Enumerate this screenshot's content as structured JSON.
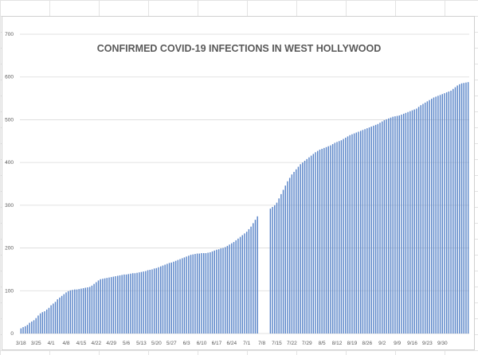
{
  "chart_data": {
    "type": "bar",
    "title": "CONFIRMED COVID-19 INFECTIONS IN WEST HOLLYWOOD",
    "xlabel": "",
    "ylabel": "",
    "ylim": [
      0,
      700
    ],
    "yticks": [
      0,
      100,
      200,
      300,
      400,
      500,
      600,
      700
    ],
    "grid": true,
    "legend": "none",
    "bar_color": "#5b86c9",
    "start_date": "3/18",
    "xtick_labels": [
      "3/18",
      "3/25",
      "4/1",
      "4/8",
      "4/15",
      "4/22",
      "4/29",
      "5/6",
      "5/13",
      "5/20",
      "5/27",
      "6/3",
      "6/10",
      "6/17",
      "6/24",
      "7/1",
      "7/8",
      "7/15",
      "7/22",
      "7/29",
      "8/5",
      "8/12",
      "8/19",
      "8/26",
      "9/2",
      "9/9",
      "9/16",
      "9/23",
      "9/30"
    ],
    "values": [
      12,
      15,
      17,
      20,
      25,
      28,
      31,
      36,
      42,
      47,
      50,
      52,
      56,
      60,
      66,
      70,
      74,
      80,
      84,
      88,
      92,
      96,
      99,
      101,
      102,
      103,
      103,
      104,
      105,
      106,
      107,
      108,
      109,
      112,
      116,
      120,
      124,
      127,
      128,
      129,
      130,
      131,
      132,
      133,
      134,
      135,
      136,
      137,
      138,
      138,
      139,
      140,
      141,
      141,
      142,
      143,
      144,
      145,
      146,
      148,
      149,
      150,
      152,
      153,
      155,
      157,
      159,
      161,
      163,
      165,
      166,
      168,
      170,
      172,
      174,
      176,
      178,
      180,
      182,
      184,
      185,
      186,
      187,
      187,
      188,
      188,
      188,
      189,
      190,
      192,
      194,
      196,
      197,
      199,
      200,
      202,
      205,
      208,
      211,
      214,
      218,
      222,
      226,
      230,
      234,
      238,
      244,
      250,
      258,
      266,
      274,
      null,
      null,
      null,
      null,
      null,
      292,
      296,
      300,
      306,
      316,
      326,
      336,
      346,
      356,
      364,
      372,
      378,
      384,
      390,
      396,
      400,
      404,
      408,
      412,
      416,
      420,
      424,
      427,
      430,
      432,
      434,
      436,
      438,
      440,
      443,
      446,
      448,
      450,
      452,
      455,
      458,
      461,
      464,
      466,
      468,
      470,
      472,
      474,
      476,
      478,
      480,
      482,
      484,
      486,
      488,
      490,
      493,
      496,
      499,
      501,
      503,
      505,
      507,
      508,
      509,
      510,
      512,
      514,
      516,
      518,
      520,
      522,
      524,
      526,
      530,
      534,
      537,
      540,
      543,
      546,
      549,
      552,
      554,
      556,
      558,
      560,
      562,
      564,
      566,
      568,
      572,
      576,
      580,
      583,
      585,
      586,
      587,
      588
    ]
  }
}
